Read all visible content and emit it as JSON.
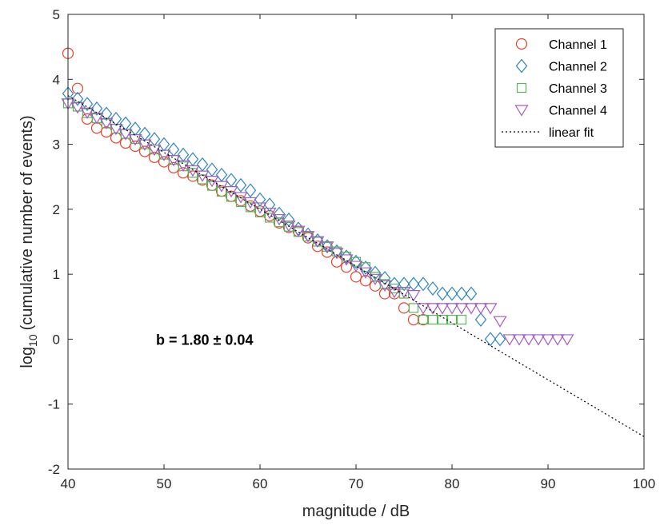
{
  "chart_data": {
    "type": "scatter",
    "xlabel": "magnitude / dB",
    "ylabel_prefix": "log",
    "ylabel_sub": "10",
    "ylabel_rest": "(cumulative number of events)",
    "xlim": [
      40,
      100
    ],
    "ylim": [
      -2,
      5
    ],
    "xticks": [
      40,
      50,
      60,
      70,
      80,
      90,
      100
    ],
    "yticks": [
      -2,
      -1,
      0,
      1,
      2,
      3,
      4,
      5
    ],
    "grid": false,
    "legend_position": "top-right",
    "annotation": "b = 1.80 ± 0.04",
    "series": [
      {
        "name": "Channel 1",
        "marker": "circle",
        "color": "#e8412c",
        "x": [
          40,
          41,
          42,
          43,
          44,
          45,
          46,
          47,
          48,
          49,
          50,
          51,
          52,
          53,
          54,
          55,
          56,
          57,
          58,
          59,
          60,
          61,
          62,
          63,
          64,
          65,
          66,
          67,
          68,
          69,
          70,
          71,
          72,
          73,
          74,
          75,
          76,
          77
        ],
        "y": [
          4.4,
          3.86,
          3.39,
          3.25,
          3.19,
          3.1,
          3.02,
          2.97,
          2.89,
          2.8,
          2.73,
          2.64,
          2.56,
          2.51,
          2.45,
          2.37,
          2.28,
          2.2,
          2.13,
          2.05,
          1.97,
          1.9,
          1.79,
          1.72,
          1.66,
          1.56,
          1.43,
          1.34,
          1.19,
          1.11,
          0.96,
          0.9,
          0.82,
          0.7,
          0.7,
          0.48,
          0.3,
          0.3
        ]
      },
      {
        "name": "Channel 2",
        "marker": "diamond",
        "color": "#2e86c1",
        "x": [
          40,
          41,
          42,
          43,
          44,
          45,
          46,
          47,
          48,
          49,
          50,
          51,
          52,
          53,
          54,
          55,
          56,
          57,
          58,
          59,
          60,
          61,
          62,
          63,
          64,
          65,
          66,
          67,
          68,
          69,
          70,
          71,
          72,
          73,
          74,
          75,
          76,
          77,
          78,
          79,
          80,
          81,
          82,
          83,
          84,
          85
        ],
        "y": [
          3.78,
          3.7,
          3.62,
          3.55,
          3.47,
          3.39,
          3.32,
          3.24,
          3.16,
          3.08,
          3.0,
          2.92,
          2.84,
          2.77,
          2.69,
          2.61,
          2.53,
          2.45,
          2.37,
          2.29,
          2.15,
          2.07,
          1.93,
          1.84,
          1.7,
          1.61,
          1.52,
          1.43,
          1.35,
          1.27,
          1.19,
          1.1,
          1.02,
          0.94,
          0.85,
          0.85,
          0.85,
          0.85,
          0.78,
          0.7,
          0.7,
          0.7,
          0.7,
          0.3,
          0,
          0
        ]
      },
      {
        "name": "Channel 3",
        "marker": "square",
        "color": "#5ab55a",
        "x": [
          40,
          41,
          42,
          43,
          44,
          45,
          46,
          47,
          48,
          49,
          50,
          51,
          52,
          53,
          54,
          55,
          56,
          57,
          58,
          59,
          60,
          61,
          62,
          63,
          64,
          65,
          66,
          67,
          68,
          69,
          70,
          71,
          72,
          73,
          74,
          75,
          76,
          77,
          78,
          79,
          80,
          81
        ],
        "y": [
          3.63,
          3.58,
          3.48,
          3.4,
          3.32,
          3.24,
          3.16,
          3.08,
          3.0,
          2.92,
          2.84,
          2.76,
          2.66,
          2.56,
          2.46,
          2.36,
          2.27,
          2.19,
          2.11,
          2.03,
          1.95,
          1.87,
          1.8,
          1.73,
          1.65,
          1.58,
          1.5,
          1.42,
          1.35,
          1.27,
          1.19,
          1.11,
          0.96,
          0.85,
          0.78,
          0.7,
          0.48,
          0.3,
          0.3,
          0.3,
          0.3,
          0.3
        ]
      },
      {
        "name": "Channel 4",
        "marker": "triangle-down",
        "color": "#a45cc1",
        "x": [
          40,
          41,
          42,
          43,
          44,
          45,
          46,
          47,
          48,
          49,
          50,
          51,
          52,
          53,
          54,
          55,
          56,
          57,
          58,
          59,
          60,
          61,
          62,
          63,
          64,
          65,
          66,
          67,
          68,
          69,
          70,
          71,
          72,
          73,
          74,
          75,
          76,
          77,
          78,
          79,
          80,
          81,
          82,
          83,
          84,
          85,
          86,
          87,
          88,
          89,
          90,
          91,
          92
        ],
        "y": [
          3.63,
          3.57,
          3.49,
          3.41,
          3.33,
          3.24,
          3.16,
          3.08,
          3.0,
          2.92,
          2.84,
          2.76,
          2.68,
          2.6,
          2.52,
          2.44,
          2.36,
          2.28,
          2.19,
          2.11,
          2.03,
          1.95,
          1.85,
          1.75,
          1.67,
          1.59,
          1.51,
          1.43,
          1.33,
          1.23,
          1.13,
          1.03,
          0.93,
          0.83,
          0.73,
          0.73,
          0.68,
          0.48,
          0.48,
          0.48,
          0.48,
          0.48,
          0.48,
          0.48,
          0.48,
          0.28,
          0,
          0,
          0,
          0,
          0,
          0,
          0
        ]
      },
      {
        "name": "linear fit",
        "marker": "dotted-line",
        "color": "#000000",
        "x": [
          40,
          100
        ],
        "y": [
          3.75,
          -1.5
        ]
      }
    ]
  }
}
